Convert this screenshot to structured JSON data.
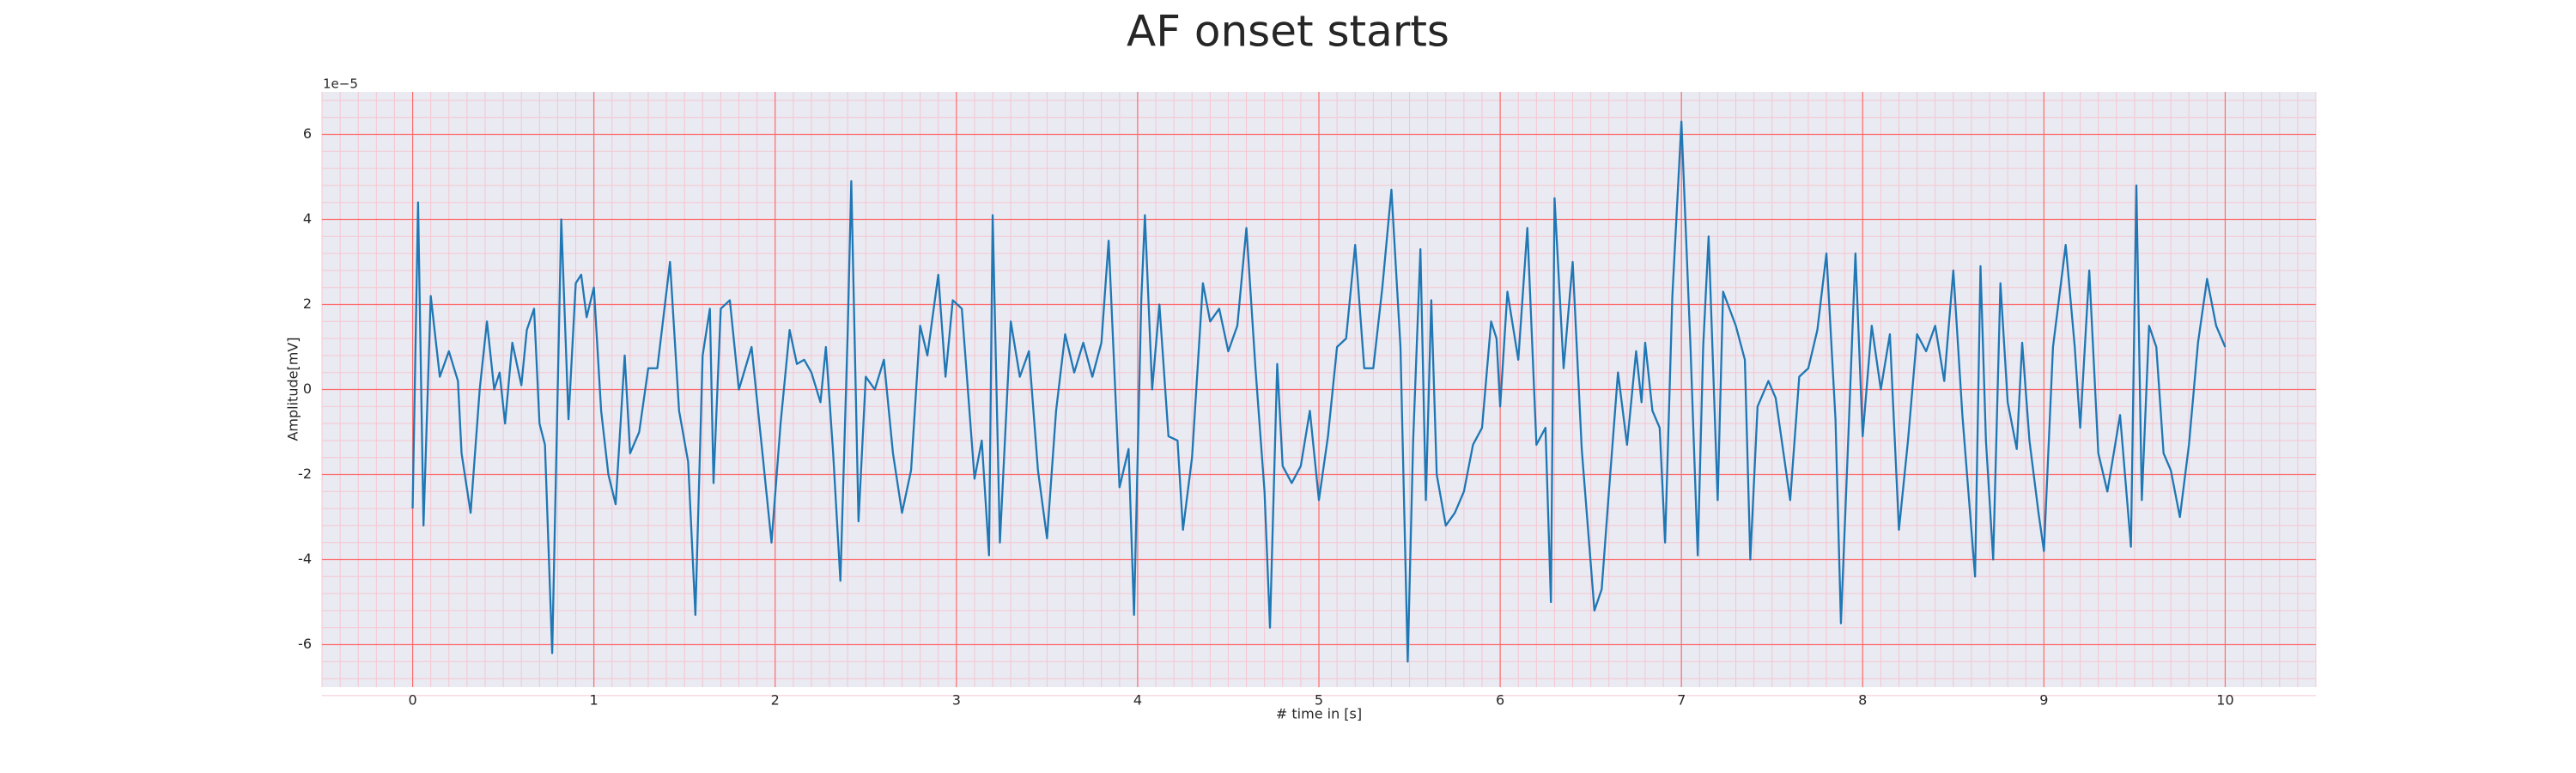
{
  "chart_data": {
    "type": "line",
    "title": "AF onset starts",
    "x_label": "# time in [s]",
    "y_label": "Amplitude[mV]",
    "y_offset_label": "1e−5",
    "xlim": [
      -0.5,
      10.5
    ],
    "ylim": [
      -7,
      7
    ],
    "xticks": [
      0,
      1,
      2,
      3,
      4,
      5,
      6,
      7,
      8,
      9,
      10
    ],
    "yticks": [
      -6,
      -4,
      -2,
      0,
      2,
      4,
      6
    ],
    "grid": true,
    "grid_color": "#ff6b6b",
    "minor_grid_color": "#f5c6d0",
    "background": "#eaeaf2",
    "series": [
      {
        "color": "#1f77b4",
        "x": [
          0,
          0.03,
          0.06,
          0.1,
          0.15,
          0.2,
          0.25,
          0.27,
          0.32,
          0.37,
          0.41,
          0.45,
          0.48,
          0.51,
          0.55,
          0.6,
          0.63,
          0.67,
          0.7,
          0.73,
          0.77,
          0.82,
          0.86,
          0.9,
          0.93,
          0.96,
          1.0,
          1.04,
          1.08,
          1.12,
          1.17,
          1.2,
          1.25,
          1.3,
          1.35,
          1.42,
          1.47,
          1.52,
          1.56,
          1.6,
          1.64,
          1.66,
          1.7,
          1.75,
          1.8,
          1.87,
          1.93,
          1.98,
          2.03,
          2.08,
          2.12,
          2.16,
          2.2,
          2.25,
          2.28,
          2.32,
          2.36,
          2.4,
          2.42,
          2.46,
          2.5,
          2.55,
          2.6,
          2.65,
          2.7,
          2.75,
          2.8,
          2.84,
          2.9,
          2.94,
          2.98,
          3.03,
          3.1,
          3.14,
          3.18,
          3.2,
          3.24,
          3.3,
          3.35,
          3.4,
          3.45,
          3.5,
          3.55,
          3.6,
          3.65,
          3.7,
          3.75,
          3.8,
          3.84,
          3.9,
          3.95,
          3.98,
          4.02,
          4.04,
          4.08,
          4.12,
          4.17,
          4.22,
          4.25,
          4.3,
          4.36,
          4.4,
          4.45,
          4.5,
          4.55,
          4.6,
          4.65,
          4.7,
          4.73,
          4.77,
          4.8,
          4.85,
          4.9,
          4.95,
          5.0,
          5.05,
          5.1,
          5.15,
          5.2,
          5.25,
          5.3,
          5.35,
          5.4,
          5.45,
          5.49,
          5.52,
          5.56,
          5.59,
          5.62,
          5.65,
          5.7,
          5.75,
          5.8,
          5.85,
          5.9,
          5.95,
          5.98,
          6.0,
          6.04,
          6.1,
          6.15,
          6.2,
          6.25,
          6.28,
          6.3,
          6.35,
          6.4,
          6.45,
          6.52,
          6.56,
          6.6,
          6.65,
          6.7,
          6.75,
          6.78,
          6.8,
          6.84,
          6.88,
          6.91,
          6.95,
          7.0,
          7.05,
          7.09,
          7.12,
          7.15,
          7.2,
          7.23,
          7.3,
          7.35,
          7.38,
          7.42,
          7.48,
          7.52,
          7.6,
          7.65,
          7.7,
          7.75,
          7.8,
          7.85,
          7.88,
          7.92,
          7.96,
          8.0,
          8.05,
          8.1,
          8.15,
          8.2,
          8.25,
          8.3,
          8.35,
          8.4,
          8.45,
          8.5,
          8.55,
          8.62,
          8.65,
          8.68,
          8.72,
          8.76,
          8.8,
          8.85,
          8.88,
          8.92,
          8.97,
          9.0,
          9.05,
          9.12,
          9.17,
          9.2,
          9.25,
          9.3,
          9.35,
          9.42,
          9.48,
          9.51,
          9.54,
          9.58,
          9.62,
          9.66,
          9.7,
          9.75,
          9.8,
          9.85,
          9.9,
          9.95,
          10.0
        ],
        "values": [
          -2.8,
          4.4,
          -3.2,
          2.2,
          0.3,
          0.9,
          0.2,
          -1.5,
          -2.9,
          0.0,
          1.6,
          0.0,
          0.4,
          -0.8,
          1.1,
          0.1,
          1.4,
          1.9,
          -0.8,
          -1.3,
          -6.2,
          4.0,
          -0.7,
          2.5,
          2.7,
          1.7,
          2.4,
          -0.5,
          -2.0,
          -2.7,
          0.8,
          -1.5,
          -1.0,
          0.5,
          0.5,
          3.0,
          -0.5,
          -1.7,
          -5.3,
          0.8,
          1.9,
          -2.2,
          1.9,
          2.1,
          0.0,
          1.0,
          -1.5,
          -3.6,
          -0.8,
          1.4,
          0.6,
          0.7,
          0.4,
          -0.3,
          1.0,
          -1.5,
          -4.5,
          1.3,
          4.9,
          -3.1,
          0.3,
          0.0,
          0.7,
          -1.5,
          -2.9,
          -1.9,
          1.5,
          0.8,
          2.7,
          0.3,
          2.1,
          1.9,
          -2.1,
          -1.2,
          -3.9,
          4.1,
          -3.6,
          1.6,
          0.3,
          0.9,
          -1.9,
          -3.5,
          -0.5,
          1.3,
          0.4,
          1.1,
          0.3,
          1.1,
          3.5,
          -2.3,
          -1.4,
          -5.3,
          2.1,
          4.1,
          0.0,
          2.0,
          -1.1,
          -1.2,
          -3.3,
          -1.6,
          2.5,
          1.6,
          1.9,
          0.9,
          1.5,
          3.8,
          0.5,
          -2.4,
          -5.6,
          0.6,
          -1.8,
          -2.2,
          -1.8,
          -0.5,
          -2.6,
          -1.1,
          1.0,
          1.2,
          3.4,
          0.5,
          0.5,
          2.4,
          4.7,
          1.0,
          -6.4,
          -1.2,
          3.3,
          -2.6,
          2.1,
          -2.0,
          -3.2,
          -2.9,
          -2.4,
          -1.3,
          -0.9,
          1.6,
          1.2,
          -0.4,
          2.3,
          0.7,
          3.8,
          -1.3,
          -0.9,
          -5.0,
          4.5,
          0.5,
          3.0,
          -1.4,
          -5.2,
          -4.7,
          -2.4,
          0.4,
          -1.3,
          0.9,
          -0.3,
          1.1,
          -0.5,
          -0.9,
          -3.6,
          2.2,
          6.3,
          1.0,
          -3.9,
          1.0,
          3.6,
          -2.6,
          2.3,
          1.5,
          0.7,
          -4.0,
          -0.4,
          0.2,
          -0.2,
          -2.6,
          0.3,
          0.5,
          1.4,
          3.2,
          -0.7,
          -5.5,
          -1.2,
          3.2,
          -1.1,
          1.5,
          0.0,
          1.3,
          -3.3,
          -1.2,
          1.3,
          0.9,
          1.5,
          0.2,
          2.8,
          -0.6,
          -4.4,
          2.9,
          -1.2,
          -4.0,
          2.5,
          -0.3,
          -1.4,
          1.1,
          -1.2,
          -2.9,
          -3.8,
          1.0,
          3.4,
          1.0,
          -0.9,
          2.8,
          -1.5,
          -2.4,
          -0.6,
          -3.7,
          4.8,
          -2.6,
          1.5,
          1.0,
          -1.5,
          -1.9,
          -3.0,
          -1.3,
          1.1,
          2.6,
          1.5,
          1.0
        ]
      }
    ]
  }
}
